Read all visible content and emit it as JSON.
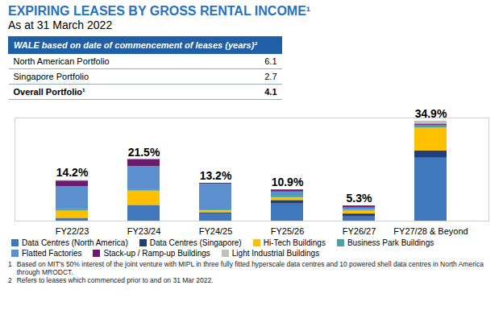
{
  "chart_data": {
    "type": "bar",
    "title": "EXPIRING LEASES BY GROSS RENTAL INCOME¹",
    "subtitle": "As at 31 March 2022",
    "categories": [
      "FY22/23",
      "FY23/24",
      "FY24/25",
      "FY25/26",
      "FY26/27",
      "FY27/28 & Beyond"
    ],
    "stacked": true,
    "series": [
      {
        "name": "Data Centres (North America)",
        "color": "#3f78bd",
        "values": [
          1.0,
          5.5,
          2.5,
          6.0,
          1.5,
          22.0
        ]
      },
      {
        "name": "Data Centres (Singapore)",
        "color": "#1f3f7a",
        "values": [
          0,
          0,
          0.3,
          1.2,
          1.0,
          2.5
        ]
      },
      {
        "name": "Hi-Tech Buildings",
        "color": "#ffc000",
        "values": [
          2.5,
          5.0,
          0.8,
          1.0,
          1.0,
          8.0
        ]
      },
      {
        "name": "Business Park Buildings",
        "color": "#4aa3a0",
        "values": [
          0.5,
          0.5,
          0.3,
          0.8,
          0.3,
          1.0
        ]
      },
      {
        "name": "Flatted Factories",
        "color": "#5b8fce",
        "values": [
          8.0,
          8.0,
          9.0,
          1.2,
          0.8,
          0
        ]
      },
      {
        "name": "Stack-up / Ramp-up Buildings",
        "color": "#6a1b6e",
        "values": [
          2.0,
          2.5,
          0.3,
          0.7,
          0.7,
          0.4
        ]
      },
      {
        "name": "Light Industrial Buildings",
        "color": "#bfbfbf",
        "values": [
          0.2,
          0,
          0,
          0,
          0,
          1.0
        ]
      }
    ],
    "totals": [
      14.2,
      21.5,
      13.2,
      10.9,
      5.3,
      34.9
    ],
    "total_labels": [
      "14.2%",
      "21.5%",
      "13.2%",
      "10.9%",
      "5.3%",
      "34.9%"
    ],
    "ylim": [
      0,
      36
    ],
    "yticks": [],
    "tick_labels": "x",
    "grid": false,
    "legend": "bottom"
  },
  "table": {
    "header": "WALE  based on date of commencement of leases (years)²",
    "rows": [
      {
        "label": "North American Portfolio",
        "value": "6.1"
      },
      {
        "label": "Singapore Portfolio",
        "value": "2.7"
      },
      {
        "label": "Overall Portfolio¹",
        "value": "4.1"
      }
    ]
  },
  "footnotes": [
    {
      "mark": "1",
      "text": "Based on MIT's 50% interest of the joint venture with MIPL in three fully fitted hyperscale data centres and 10 powered shell data centres in North America through MRODCT."
    },
    {
      "mark": "2",
      "text": "Refers to leases which commenced prior to and on 31 Mar 2022."
    }
  ]
}
